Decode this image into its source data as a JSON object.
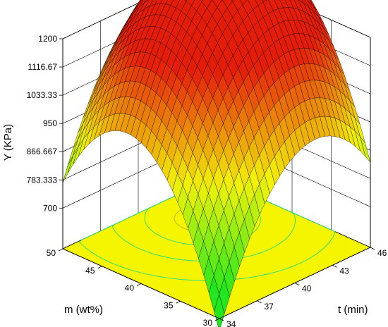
{
  "chart_data": {
    "type": "surface3d",
    "title": "",
    "zlabel": "Y (KPa)",
    "xlabel": "m (wt%)",
    "ylabel": "t (min)",
    "z_ticks": [
      "700",
      "783.333",
      "866.667",
      "950",
      "1033.33",
      "1116.67",
      "1200"
    ],
    "x_ticks": [
      "30",
      "35",
      "40",
      "45",
      "50"
    ],
    "y_ticks": [
      "34",
      "37",
      "40",
      "43",
      "46"
    ],
    "zlim": [
      700,
      1200
    ],
    "xlim": [
      30,
      50
    ],
    "ylim": [
      34,
      46
    ],
    "surface_corners": [
      {
        "m": 50,
        "t": 34,
        "Y": 793
      },
      {
        "m": 30,
        "t": 34,
        "Y": 610
      },
      {
        "m": 30,
        "t": 46,
        "Y": 890
      },
      {
        "m": 50,
        "t": 46,
        "Y": 1065
      }
    ],
    "surface_max": {
      "m": 45,
      "t": 42,
      "Y": 1175
    },
    "colormap": [
      "#22e61e",
      "#f2f20a",
      "#e41c0a"
    ],
    "contour_floor_color": "#f5f500",
    "contour_line_color": "#33e07a",
    "grid": true
  }
}
